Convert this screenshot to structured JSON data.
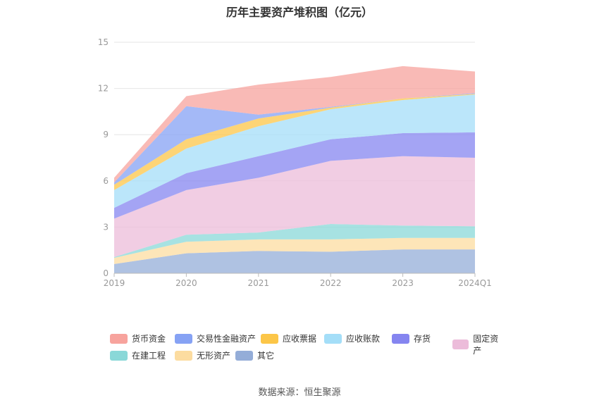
{
  "chart_data": {
    "type": "area",
    "stacked": true,
    "title": "历年主要资产堆积图（亿元）",
    "categories": [
      "2019",
      "2020",
      "2021",
      "2022",
      "2023",
      "2024Q1"
    ],
    "ylim": [
      0,
      15
    ],
    "yticks": [
      "0",
      "3",
      "6",
      "9",
      "12",
      "15"
    ],
    "grid": true,
    "legend_position": "bottom",
    "series": [
      {
        "name": "其它",
        "color": "#94add8",
        "values": [
          0.6,
          1.3,
          1.45,
          1.4,
          1.55,
          1.55
        ]
      },
      {
        "name": "无形资产",
        "color": "#fcdca0",
        "values": [
          0.4,
          0.75,
          0.75,
          0.8,
          0.75,
          0.75
        ]
      },
      {
        "name": "在建工程",
        "color": "#8ad8d8",
        "values": [
          0.05,
          0.45,
          0.45,
          1.0,
          0.8,
          0.75
        ]
      },
      {
        "name": "固定资产",
        "color": "#ecbcda",
        "values": [
          2.5,
          2.9,
          3.55,
          4.1,
          4.5,
          4.45
        ]
      },
      {
        "name": "存货",
        "color": "#8585f0",
        "values": [
          0.7,
          1.1,
          1.4,
          1.4,
          1.5,
          1.65
        ]
      },
      {
        "name": "应收账款",
        "color": "#a4def8",
        "values": [
          1.15,
          1.6,
          1.95,
          1.95,
          2.15,
          2.45
        ]
      },
      {
        "name": "应收票据",
        "color": "#fcc648",
        "values": [
          0.35,
          0.6,
          0.5,
          0.1,
          0.1,
          0.05
        ]
      },
      {
        "name": "交易性金融资产",
        "color": "#86a2f4",
        "values": [
          0.15,
          2.15,
          0.25,
          0.05,
          0.0,
          0.05
        ]
      },
      {
        "name": "货币资金",
        "color": "#f7a39d",
        "values": [
          0.3,
          0.65,
          1.95,
          1.95,
          2.1,
          1.4
        ]
      }
    ]
  },
  "source": "数据来源：恒生聚源"
}
